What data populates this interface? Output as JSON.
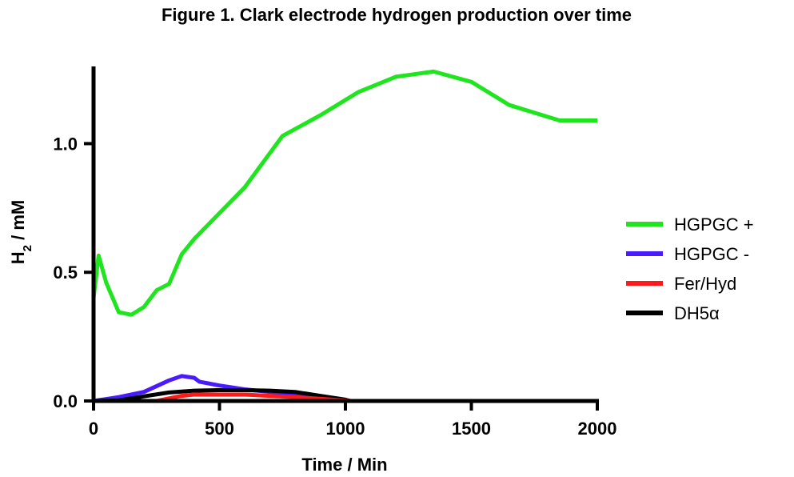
{
  "chart_data": {
    "type": "line",
    "title": "Figure 1. Clark electrode hydrogen production over time",
    "xlabel": "Time / Min",
    "ylabel_main": "H",
    "ylabel_sub": "2",
    "ylabel_rest": " / mM",
    "xlim": [
      0,
      2000
    ],
    "ylim": [
      0,
      1.3
    ],
    "xticks": [
      0,
      500,
      1000,
      1500,
      2000
    ],
    "xtick_labels": [
      "0",
      "500",
      "1000",
      "1500",
      "2000"
    ],
    "yticks": [
      0,
      0.5,
      1.0
    ],
    "ytick_labels": [
      "0.0",
      "0.5",
      "1.0"
    ],
    "grid": false,
    "legend_position": "right",
    "series": [
      {
        "name": "HGPGC +",
        "color": "#1fe51f",
        "points": [
          [
            0,
            0.4
          ],
          [
            20,
            0.565
          ],
          [
            50,
            0.46
          ],
          [
            100,
            0.345
          ],
          [
            150,
            0.335
          ],
          [
            200,
            0.365
          ],
          [
            250,
            0.43
          ],
          [
            300,
            0.455
          ],
          [
            350,
            0.57
          ],
          [
            400,
            0.63
          ],
          [
            500,
            0.73
          ],
          [
            600,
            0.83
          ],
          [
            750,
            1.03
          ],
          [
            900,
            1.11
          ],
          [
            1050,
            1.2
          ],
          [
            1200,
            1.26
          ],
          [
            1350,
            1.28
          ],
          [
            1500,
            1.24
          ],
          [
            1650,
            1.15
          ],
          [
            1850,
            1.09
          ],
          [
            2000,
            1.09
          ]
        ]
      },
      {
        "name": "HGPGC -",
        "color": "#4a1aff",
        "points": [
          [
            0,
            0.0
          ],
          [
            100,
            0.015
          ],
          [
            200,
            0.035
          ],
          [
            300,
            0.08
          ],
          [
            350,
            0.097
          ],
          [
            400,
            0.09
          ],
          [
            420,
            0.075
          ],
          [
            500,
            0.06
          ],
          [
            600,
            0.045
          ],
          [
            700,
            0.035
          ],
          [
            800,
            0.025
          ],
          [
            1000,
            0.0
          ]
        ]
      },
      {
        "name": "Fer/Hyd",
        "color": "#ff1a1a",
        "points": [
          [
            250,
            0.0
          ],
          [
            350,
            0.02
          ],
          [
            400,
            0.025
          ],
          [
            500,
            0.025
          ],
          [
            600,
            0.025
          ],
          [
            700,
            0.02
          ],
          [
            800,
            0.015
          ],
          [
            950,
            0.005
          ],
          [
            1020,
            0.0
          ]
        ]
      },
      {
        "name": "DH5α",
        "color": "#000000",
        "points": [
          [
            0,
            0.0
          ],
          [
            100,
            0.002
          ],
          [
            200,
            0.018
          ],
          [
            300,
            0.033
          ],
          [
            400,
            0.04
          ],
          [
            500,
            0.042
          ],
          [
            600,
            0.042
          ],
          [
            700,
            0.04
          ],
          [
            800,
            0.035
          ],
          [
            900,
            0.02
          ],
          [
            1000,
            0.005
          ],
          [
            1020,
            0.0
          ]
        ]
      }
    ]
  }
}
